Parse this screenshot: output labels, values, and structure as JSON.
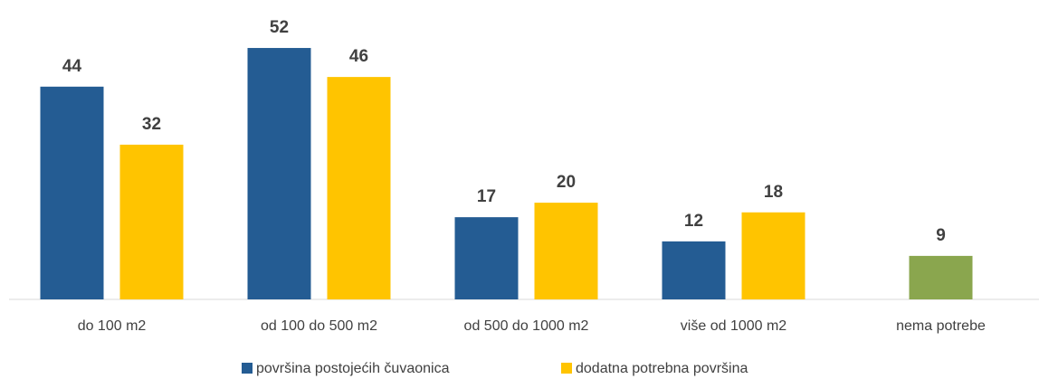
{
  "chart_data": {
    "type": "bar",
    "categories": [
      "do 100 m2",
      "od 100 do 500 m2",
      "od 500 do 1000 m2",
      "više od 1000 m2",
      "nema potrebe"
    ],
    "series": [
      {
        "name": "površina postojećih čuvaonica",
        "color": "#245c93",
        "values": [
          44,
          52,
          17,
          12,
          null
        ]
      },
      {
        "name": "dodatna potrebna površina",
        "color": "#ffc400",
        "values": [
          32,
          46,
          20,
          18,
          null
        ]
      },
      {
        "color": "#8aa64e",
        "values": [
          null,
          null,
          null,
          null,
          9
        ]
      }
    ],
    "ylim": [
      0,
      55
    ]
  }
}
